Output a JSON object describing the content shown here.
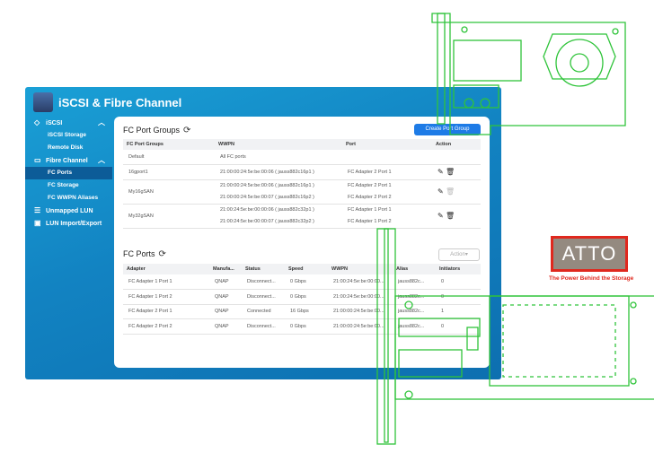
{
  "app": {
    "title": "iSCSI & Fibre Channel"
  },
  "sidebar": {
    "items": [
      {
        "label": "iSCSI",
        "icon": "iscsi-icon",
        "expanded": true
      },
      {
        "label": "iSCSI Storage"
      },
      {
        "label": "Remote Disk"
      },
      {
        "label": "Fibre Channel",
        "icon": "fibre-channel-icon",
        "expanded": true
      },
      {
        "label": "FC Ports",
        "active": true
      },
      {
        "label": "FC Storage"
      },
      {
        "label": "FC WWPN Aliases"
      },
      {
        "label": "Unmapped LUN",
        "icon": "database-icon"
      },
      {
        "label": "LUN Import/Export",
        "icon": "import-export-icon"
      }
    ]
  },
  "groups": {
    "title": "FC Port Groups",
    "create_label": "Create Port Group",
    "columns": [
      "FC Port Groups",
      "WWPN",
      "Port",
      "Action"
    ],
    "rows": [
      {
        "name": "Default",
        "wwpn": [
          "All FC ports"
        ],
        "port": [
          ""
        ]
      },
      {
        "name": "16gport1",
        "wwpn": [
          "21:00:00:24:5e:be:00:06 ( jauss882c16p1 )"
        ],
        "port": [
          "FC Adapter 2 Port 1"
        ]
      },
      {
        "name": "My16gSAN",
        "wwpn": [
          "21:00:00:24:5e:be:00:06 ( jauss882c16p1 )",
          "21:00:00:24:5e:be:00:07 ( jauss882c16p2 )"
        ],
        "port": [
          "FC Adapter 2 Port 1",
          "FC Adapter 2 Port 2"
        ]
      },
      {
        "name": "My32gSAN",
        "wwpn": [
          "21:00:24:5e:be:00:00:06 ( jauss882c32p1 )",
          "21:00:24:5e:be:00:00:07 ( jauss882c32p2 )"
        ],
        "port": [
          "FC Adapter 1 Port 1",
          "FC Adapter 1 Port 2"
        ]
      }
    ]
  },
  "ports": {
    "title": "FC Ports",
    "action_label": "Action▾",
    "columns": [
      "Adapter",
      "Manufa...",
      "Status",
      "Speed",
      "WWPN",
      "Alias",
      "Initiators"
    ],
    "rows": [
      [
        "FC Adapter 1 Port 1",
        "QNAP",
        "Disconnect...",
        "0 Gbps",
        "21:00:24:5e:be:00:00...",
        "jauss882c...",
        "0"
      ],
      [
        "FC Adapter 1 Port 2",
        "QNAP",
        "Disconnect...",
        "0 Gbps",
        "21:00:24:5e:be:00:00...",
        "jauss882c...",
        "0"
      ],
      [
        "FC Adapter 2 Port 1",
        "QNAP",
        "Connected",
        "16 Gbps",
        "21:00:00:24:5e:be:00...",
        "jauss882c...",
        "1"
      ],
      [
        "FC Adapter 2 Port 2",
        "QNAP",
        "Disconnect...",
        "0 Gbps",
        "21:00:00:24:5e:be:00...",
        "jauss882c...",
        "0"
      ]
    ]
  },
  "logo": {
    "text": "ATTO",
    "tagline": "The Power Behind the Storage"
  },
  "colors": {
    "accent": "#1e7be6",
    "window": "#1283c2",
    "pcb": "#2fc43a",
    "brand": "#e0281e"
  }
}
